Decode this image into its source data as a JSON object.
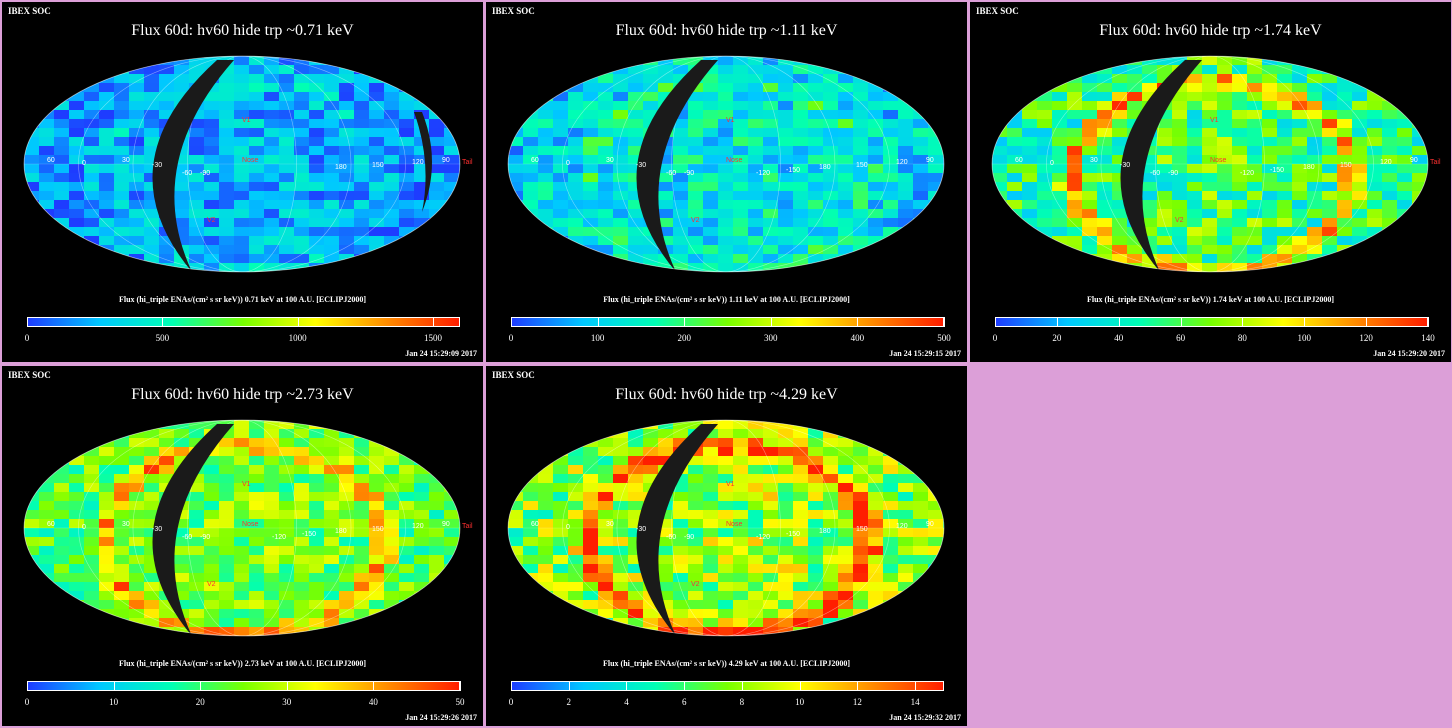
{
  "colors": {
    "page_background": "#dc9fd8",
    "panel_background": "#000000",
    "colorbar": [
      "#1e3cff",
      "#00c8ff",
      "#00ffb4",
      "#78ff00",
      "#ffff00",
      "#ff8c00",
      "#ff1e00"
    ]
  },
  "panels": [
    {
      "header": "IBEX SOC",
      "title": "Flux   60d: hv60 hide trp ~0.71 keV",
      "colorbar_label": "Flux (hi_triple ENAs/(cm² s sr keV))  0.71 keV at 100 A.U. [ECLIPJ2000]",
      "timestamp": "Jan 24 15:29:09 2017",
      "map_labels": [
        "V1",
        "V2",
        "Nose",
        "Tail",
        "90",
        "-90",
        "-60",
        "-30",
        "0",
        "30",
        "60",
        "120",
        "150",
        "180"
      ]
    },
    {
      "header": "IBEX SOC",
      "title": "Flux   60d: hv60 hide trp ~1.11 keV",
      "colorbar_label": "Flux (hi_triple ENAs/(cm² s sr keV))  1.11 keV at 100 A.U. [ECLIPJ2000]",
      "timestamp": "Jan 24 15:29:15 2017",
      "map_labels": [
        "V1",
        "V2",
        "Nose",
        "90",
        "-90",
        "-120",
        "-150",
        "-60",
        "-30",
        "0",
        "30",
        "60",
        "120",
        "150",
        "180"
      ]
    },
    {
      "header": "IBEX SOC",
      "title": "Flux   60d: hv60 hide trp ~1.74 keV",
      "colorbar_label": "Flux (hi_triple ENAs/(cm² s sr keV))  1.74 keV at 100 A.U. [ECLIPJ2000]",
      "timestamp": "Jan 24 15:29:20 2017",
      "map_labels": [
        "V1",
        "V2",
        "Nose",
        "Tail",
        "90",
        "-90",
        "-120",
        "-150",
        "-60",
        "-30",
        "0",
        "30",
        "60",
        "120",
        "150",
        "180"
      ]
    },
    {
      "header": "IBEX SOC",
      "title": "Flux   60d: hv60 hide trp ~2.73 keV",
      "colorbar_label": "Flux (hi_triple ENAs/(cm² s sr keV))  2.73 keV at 100 A.U. [ECLIPJ2000]",
      "timestamp": "Jan 24 15:29:26 2017",
      "map_labels": [
        "V1",
        "V2",
        "Nose",
        "Tail",
        "90",
        "-90",
        "-120",
        "-150",
        "-60",
        "-30",
        "0",
        "30",
        "60",
        "120",
        "150",
        "180"
      ]
    },
    {
      "header": "IBEX SOC",
      "title": "Flux   60d: hv60 hide trp ~4.29 keV",
      "colorbar_label": "Flux (hi_triple ENAs/(cm² s sr keV))  4.29 keV at 100 A.U. [ECLIPJ2000]",
      "timestamp": "Jan 24 15:29:32 2017",
      "map_labels": [
        "V1",
        "V2",
        "Nose",
        "90",
        "-90",
        "-120",
        "-150",
        "-60",
        "-30",
        "0",
        "30",
        "60",
        "120",
        "150",
        "180"
      ]
    }
  ],
  "chart_data": [
    {
      "type": "heatmap",
      "projection": "Mollweide all-sky map",
      "energy_keV": 0.71,
      "colorbar_range": [
        0,
        1600
      ],
      "colorbar_ticks": [
        0,
        500,
        1000,
        1500
      ],
      "dominant_level": "low (blue)"
    },
    {
      "type": "heatmap",
      "projection": "Mollweide all-sky map",
      "energy_keV": 1.11,
      "colorbar_range": [
        0,
        500
      ],
      "colorbar_ticks": [
        0,
        100,
        200,
        300,
        400,
        500
      ],
      "dominant_level": "low-mid (blue/cyan)"
    },
    {
      "type": "heatmap",
      "projection": "Mollweide all-sky map",
      "energy_keV": 1.74,
      "colorbar_range": [
        0,
        140
      ],
      "colorbar_ticks": [
        0,
        20,
        40,
        60,
        80,
        100,
        120,
        140
      ],
      "dominant_level": "mid (cyan/green), ribbon high"
    },
    {
      "type": "heatmap",
      "projection": "Mollweide all-sky map",
      "energy_keV": 2.73,
      "colorbar_range": [
        0,
        50
      ],
      "colorbar_ticks": [
        0,
        10,
        20,
        30,
        40,
        50
      ],
      "dominant_level": "mid (green)"
    },
    {
      "type": "heatmap",
      "projection": "Mollweide all-sky map",
      "energy_keV": 4.29,
      "colorbar_range": [
        0,
        15
      ],
      "colorbar_ticks": [
        0,
        2,
        4,
        6,
        8,
        10,
        12,
        14
      ],
      "dominant_level": "mid-high (green/yellow/red)"
    }
  ]
}
